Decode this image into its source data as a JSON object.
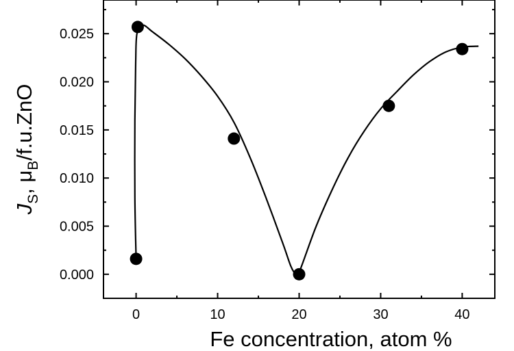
{
  "chart_data": {
    "type": "scatter",
    "xlabel": "Fe concentration, atom %",
    "ylabel": {
      "main": "J",
      "main_sub": "S",
      "sep": ", ",
      "unit": "μ",
      "unit_sub": "B",
      "rest": "/f.u.ZnO"
    },
    "xlim": [
      -4,
      44
    ],
    "ylim": [
      -0.0025,
      0.0285
    ],
    "xticks": [
      0,
      10,
      20,
      30,
      40
    ],
    "xtick_labels": [
      "0",
      "10",
      "20",
      "30",
      "40"
    ],
    "yticks": [
      0.0,
      0.005,
      0.01,
      0.015,
      0.02,
      0.025
    ],
    "ytick_labels": [
      "0.000",
      "0.005",
      "0.010",
      "0.015",
      "0.020",
      "0.025"
    ],
    "grid": false,
    "legend": "none",
    "series": [
      {
        "points": [
          {
            "x": 0,
            "y": 0.0016
          },
          {
            "x": 0.2,
            "y": 0.0257
          },
          {
            "x": 12,
            "y": 0.0141
          },
          {
            "x": 20,
            "y": 0.0
          },
          {
            "x": 31,
            "y": 0.0175
          },
          {
            "x": 40,
            "y": 0.0234
          }
        ],
        "marker_color": "#000000"
      }
    ],
    "fit_curve": [
      [
        0,
        0.0016
      ],
      [
        -0.15,
        0.008
      ],
      [
        -0.15,
        0.016
      ],
      [
        -0.05,
        0.022
      ],
      [
        0.1,
        0.025
      ],
      [
        0.8,
        0.0259
      ],
      [
        2,
        0.0252
      ],
      [
        4,
        0.0239
      ],
      [
        6,
        0.0224
      ],
      [
        8,
        0.0206
      ],
      [
        10,
        0.0185
      ],
      [
        12,
        0.0158
      ],
      [
        14,
        0.0121
      ],
      [
        16,
        0.0078
      ],
      [
        18,
        0.0032
      ],
      [
        19,
        0.0008
      ],
      [
        19.6,
        0.0
      ],
      [
        20,
        0.0002
      ],
      [
        22,
        0.0048
      ],
      [
        24,
        0.0087
      ],
      [
        26,
        0.0121
      ],
      [
        28,
        0.0149
      ],
      [
        30,
        0.0172
      ],
      [
        32,
        0.019
      ],
      [
        34,
        0.0207
      ],
      [
        36,
        0.0221
      ],
      [
        38,
        0.0231
      ],
      [
        40,
        0.0236
      ],
      [
        42,
        0.0237
      ]
    ],
    "line_color": "#000000"
  }
}
